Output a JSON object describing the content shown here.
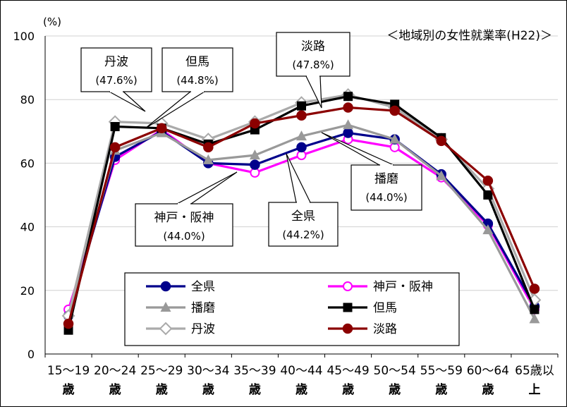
{
  "chart_data": {
    "type": "line",
    "title": "＜地域別の女性就業率(H22)＞",
    "unit_label": "(%)",
    "ylim": [
      0,
      100
    ],
    "yticks": [
      "0",
      "20",
      "40",
      "60",
      "80",
      "100"
    ],
    "grid": true,
    "legend_position": "bottom-center",
    "categories": [
      [
        "15～19",
        "歳"
      ],
      [
        "20～24",
        "歳"
      ],
      [
        "25～29",
        "歳"
      ],
      [
        "30～34",
        "歳"
      ],
      [
        "35～39",
        "歳"
      ],
      [
        "40～44",
        "歳"
      ],
      [
        "45～49",
        "歳"
      ],
      [
        "50～54",
        "歳"
      ],
      [
        "55～59",
        "歳"
      ],
      [
        "60～64",
        "歳"
      ],
      [
        "65歳以",
        "上"
      ]
    ],
    "series": [
      {
        "name": "全県",
        "color": "#00008B",
        "marker": "circle-filled",
        "values": [
          12,
          62,
          70,
          60,
          59.5,
          65,
          69.5,
          67.5,
          56.5,
          41,
          15
        ]
      },
      {
        "name": "神戸・阪神",
        "color": "#FF00FF",
        "marker": "circle-open",
        "values": [
          14,
          61,
          70.5,
          60,
          57,
          62.5,
          67.5,
          65,
          55.5,
          40.5,
          14
        ]
      },
      {
        "name": "播磨",
        "color": "#999999",
        "marker": "triangle",
        "values": [
          11,
          64,
          69.5,
          61,
          62.5,
          68.5,
          72,
          67.5,
          56,
          39,
          11
        ]
      },
      {
        "name": "但馬",
        "color": "#000000",
        "marker": "square",
        "values": [
          7.5,
          71.5,
          71,
          66,
          70.5,
          78,
          81,
          78.5,
          68,
          50,
          14
        ]
      },
      {
        "name": "丹波",
        "color": "#AAAAAA",
        "marker": "diamond-open",
        "values": [
          12,
          73,
          72.5,
          67.5,
          73,
          79,
          81.5,
          77.5,
          67.5,
          52,
          17
        ]
      },
      {
        "name": "淡路",
        "color": "#8B0000",
        "marker": "circle-filled",
        "values": [
          9.5,
          65,
          71,
          65,
          72.5,
          75,
          77.5,
          76.5,
          67,
          54.5,
          20.5
        ]
      }
    ],
    "annotations": [
      {
        "name": "丹波",
        "value": "(47.6%)"
      },
      {
        "name": "但馬",
        "value": "(44.8%)"
      },
      {
        "name": "淡路",
        "value": "(47.8%)"
      },
      {
        "name": "播磨",
        "value": "(44.0%)"
      },
      {
        "name": "全県",
        "value": "(44.2%)"
      },
      {
        "name": "神戸・阪神",
        "value": "(44.0%)"
      }
    ]
  }
}
